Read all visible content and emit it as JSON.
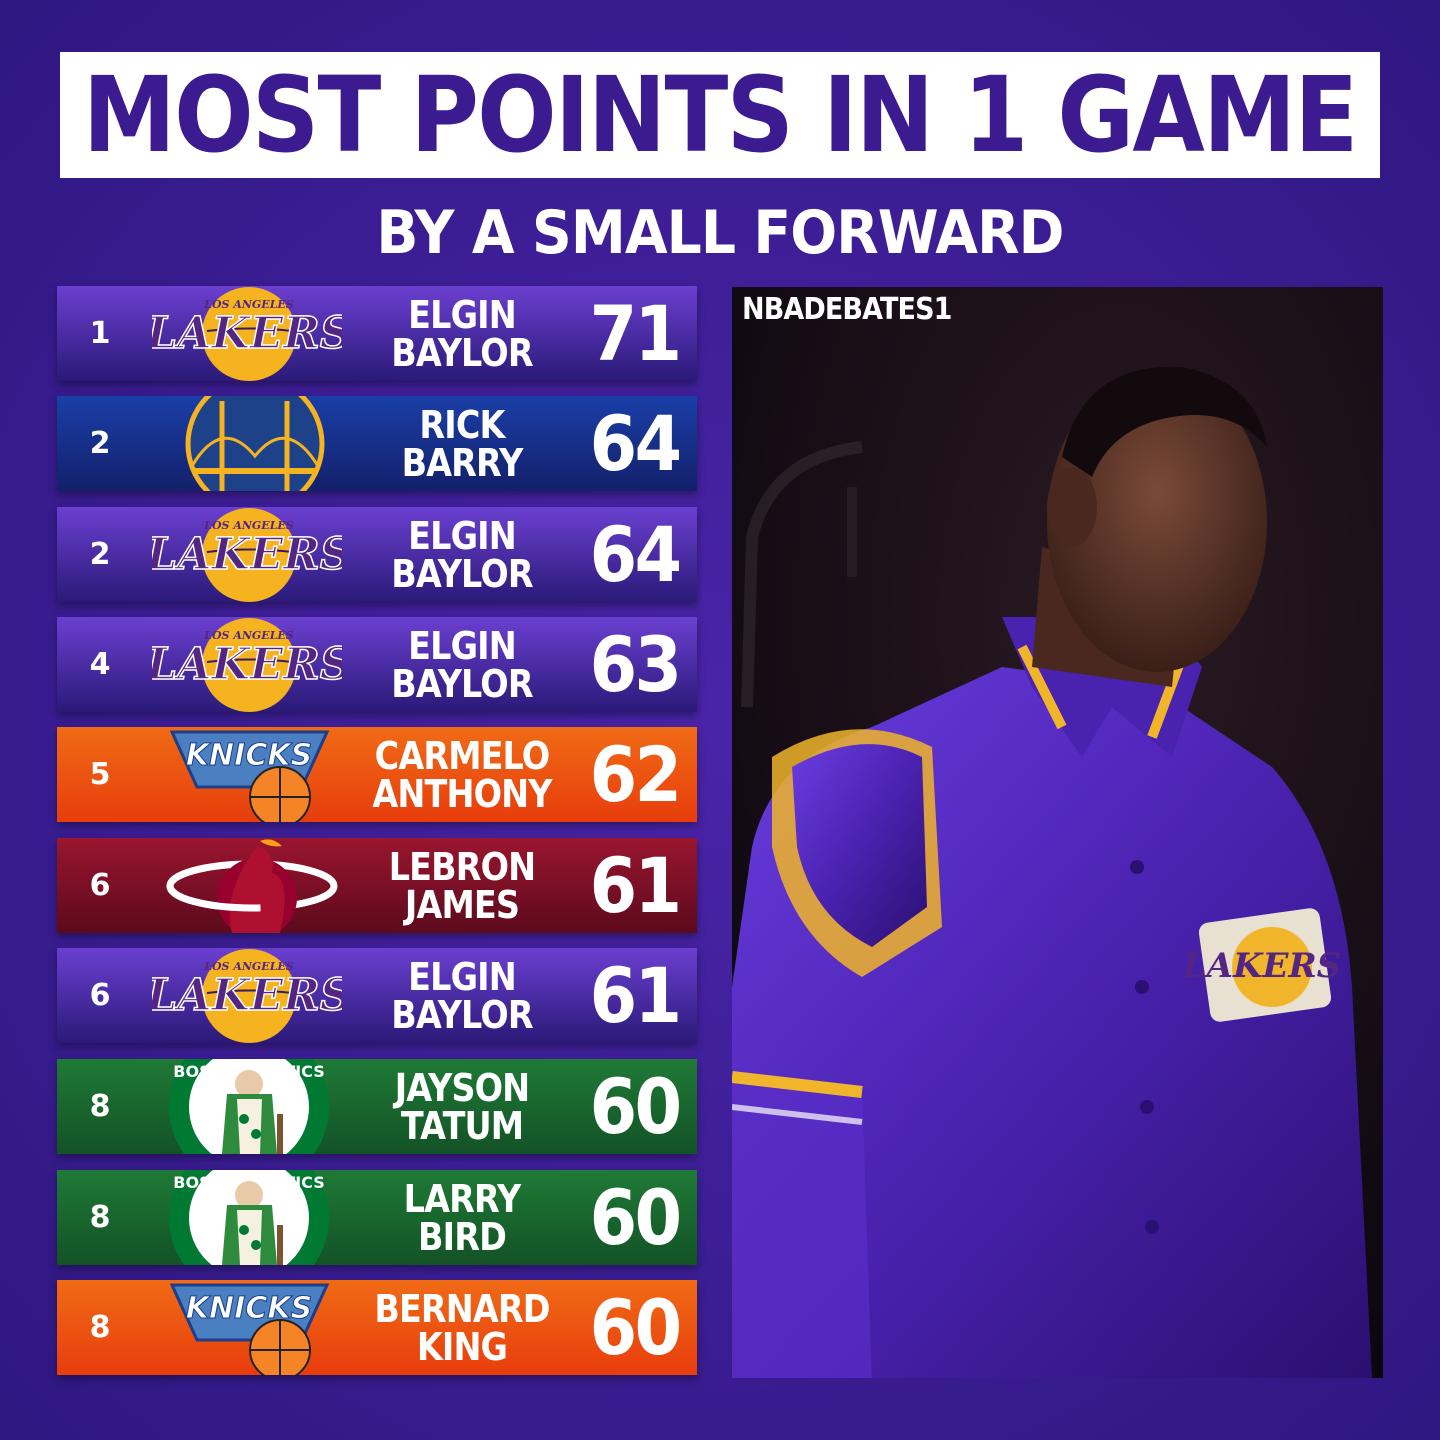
{
  "title": "MOST POINTS IN 1 GAME",
  "subtitle": "BY A SMALL FORWARD",
  "watermark": "NBADEBATES1",
  "rows": [
    {
      "rank": "1",
      "first": "ELGIN",
      "last": "BAYLOR",
      "points": "71",
      "team": "lakers",
      "logo_text": "LAKERS",
      "logo_sub": "LOS ANGELES",
      "bg": "purple"
    },
    {
      "rank": "2",
      "first": "RICK",
      "last": "BARRY",
      "points": "64",
      "team": "warriors",
      "bg": "blue"
    },
    {
      "rank": "2",
      "first": "ELGIN",
      "last": "BAYLOR",
      "points": "64",
      "team": "lakers",
      "logo_text": "LAKERS",
      "logo_sub": "LOS ANGELES",
      "bg": "purple"
    },
    {
      "rank": "4",
      "first": "ELGIN",
      "last": "BAYLOR",
      "points": "63",
      "team": "lakers",
      "logo_text": "LAKERS",
      "logo_sub": "LOS ANGELES",
      "bg": "purple"
    },
    {
      "rank": "5",
      "first": "CARMELO",
      "last": "ANTHONY",
      "points": "62",
      "team": "knicks",
      "logo_text": "KNICKS",
      "bg": "orange"
    },
    {
      "rank": "6",
      "first": "LEBRON",
      "last": "JAMES",
      "points": "61",
      "team": "heat",
      "bg": "red"
    },
    {
      "rank": "6",
      "first": "ELGIN",
      "last": "BAYLOR",
      "points": "61",
      "team": "lakers",
      "logo_text": "LAKERS",
      "logo_sub": "LOS ANGELES",
      "bg": "purple"
    },
    {
      "rank": "8",
      "first": "JAYSON",
      "last": "TATUM",
      "points": "60",
      "team": "celtics",
      "logo_text": "BOSTON CELTICS",
      "bg": "green"
    },
    {
      "rank": "8",
      "first": "LARRY",
      "last": "BIRD",
      "points": "60",
      "team": "celtics",
      "logo_text": "BOSTON CELTICS",
      "bg": "green"
    },
    {
      "rank": "8",
      "first": "BERNARD",
      "last": "KING",
      "points": "60",
      "team": "knicks",
      "logo_text": "KNICKS",
      "bg": "orange"
    }
  ],
  "colors": {
    "purple": [
      "#6b3fd0",
      "#2a1a78"
    ],
    "blue": [
      "#1a3fa8",
      "#13206a"
    ],
    "orange": [
      "#f06b16",
      "#e83d0c"
    ],
    "red": [
      "#9a1530",
      "#5c0a1c"
    ],
    "green": [
      "#1f7a36",
      "#135226"
    ],
    "title_text": "#3b1b8f",
    "lakers_gold": "#f5b320",
    "lakers_purple": "#552583"
  },
  "photo": {
    "jacket_logo_text": "LAKERS"
  }
}
